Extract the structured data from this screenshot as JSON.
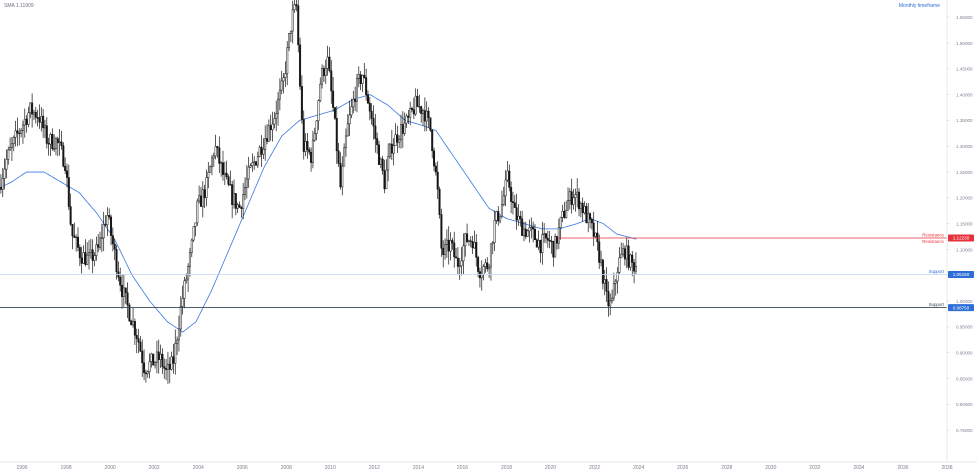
{
  "chart_data": {
    "type": "candlestick",
    "title": "SMA 1.11909",
    "timeframe_label": "Monthly timeframe",
    "x_range": [
      1995.0,
      2038.0
    ],
    "ylim": [
      0.7,
      1.56
    ],
    "y_ticks": [
      0.75,
      0.8,
      0.85,
      0.9,
      0.95,
      1.0,
      1.05,
      1.1,
      1.15,
      1.2,
      1.25,
      1.3,
      1.35,
      1.4,
      1.45,
      1.5,
      1.55
    ],
    "y_tick_labels": [
      "0.75000",
      "0.80000",
      "0.85000",
      "0.90000",
      "0.95000",
      "1.00000",
      "1.05000",
      "1.10000",
      "1.15000",
      "1.20000",
      "1.25000",
      "1.30000",
      "1.35000",
      "1.40000",
      "1.45000",
      "1.50000",
      "1.55000"
    ],
    "x_ticks": [
      1996,
      1998,
      2000,
      2002,
      2004,
      2006,
      2008,
      2010,
      2012,
      2014,
      2016,
      2018,
      2020,
      2022,
      2024,
      2026,
      2028,
      2030,
      2032,
      2034,
      2036,
      2038
    ],
    "x_tick_labels": [
      "1996",
      "1998",
      "2000",
      "2002",
      "2004",
      "2006",
      "2008",
      "2010",
      "2012",
      "2014",
      "2016",
      "2018",
      "2020",
      "2022",
      "2024",
      "2026",
      "2028",
      "2030",
      "2032",
      "2034",
      "2036",
      "2038"
    ],
    "levels": [
      {
        "name": "Resistance",
        "value": 1.1223,
        "label": "1.12230",
        "color": "#e5333b",
        "line_from_year": 2020.3,
        "badge_color": "#e5333b"
      },
      {
        "name": "Support",
        "value": 1.0516,
        "label": "1.05160",
        "color": "#2d6ed6",
        "line_from_year": 1995.0,
        "badge_color": "#2d6ed6"
      },
      {
        "name": "Support",
        "value": 0.9875,
        "label": "0.98750",
        "color": "#3a4656",
        "line_from_year": 1995.0,
        "badge_color": "#2d6ed6"
      }
    ],
    "price_series_anchors": [
      [
        1995.0,
        1.22
      ],
      [
        1995.3,
        1.27
      ],
      [
        1995.8,
        1.32
      ],
      [
        1996.4,
        1.37
      ],
      [
        1996.8,
        1.36
      ],
      [
        1997.2,
        1.31
      ],
      [
        1997.6,
        1.31
      ],
      [
        1998.0,
        1.27
      ],
      [
        1998.3,
        1.13
      ],
      [
        1998.7,
        1.09
      ],
      [
        1999.1,
        1.08
      ],
      [
        1999.5,
        1.1
      ],
      [
        1999.9,
        1.17
      ],
      [
        2000.3,
        1.08
      ],
      [
        2000.6,
        1.02
      ],
      [
        2000.9,
        0.98
      ],
      [
        2001.3,
        0.93
      ],
      [
        2001.6,
        0.87
      ],
      [
        2001.9,
        0.88
      ],
      [
        2002.3,
        0.89
      ],
      [
        2002.6,
        0.86
      ],
      [
        2002.9,
        0.88
      ],
      [
        2003.3,
        1.0
      ],
      [
        2003.7,
        1.09
      ],
      [
        2004.0,
        1.18
      ],
      [
        2004.4,
        1.22
      ],
      [
        2004.8,
        1.3
      ],
      [
        2005.2,
        1.24
      ],
      [
        2005.6,
        1.2
      ],
      [
        2005.9,
        1.18
      ],
      [
        2006.3,
        1.24
      ],
      [
        2006.7,
        1.28
      ],
      [
        2007.1,
        1.32
      ],
      [
        2007.5,
        1.36
      ],
      [
        2007.9,
        1.42
      ],
      [
        2008.3,
        1.55
      ],
      [
        2008.5,
        1.57
      ],
      [
        2008.8,
        1.3
      ],
      [
        2009.2,
        1.28
      ],
      [
        2009.6,
        1.43
      ],
      [
        2009.9,
        1.47
      ],
      [
        2010.2,
        1.36
      ],
      [
        2010.5,
        1.22
      ],
      [
        2010.8,
        1.33
      ],
      [
        2011.2,
        1.41
      ],
      [
        2011.5,
        1.44
      ],
      [
        2011.8,
        1.38
      ],
      [
        2012.2,
        1.29
      ],
      [
        2012.5,
        1.23
      ],
      [
        2012.8,
        1.3
      ],
      [
        2013.2,
        1.33
      ],
      [
        2013.6,
        1.35
      ],
      [
        2013.9,
        1.38
      ],
      [
        2014.3,
        1.37
      ],
      [
        2014.6,
        1.33
      ],
      [
        2014.9,
        1.22
      ],
      [
        2015.1,
        1.09
      ],
      [
        2015.5,
        1.11
      ],
      [
        2015.8,
        1.07
      ],
      [
        2016.2,
        1.12
      ],
      [
        2016.5,
        1.12
      ],
      [
        2016.8,
        1.06
      ],
      [
        2017.2,
        1.07
      ],
      [
        2017.5,
        1.15
      ],
      [
        2017.8,
        1.18
      ],
      [
        2018.1,
        1.24
      ],
      [
        2018.4,
        1.17
      ],
      [
        2018.8,
        1.14
      ],
      [
        2019.2,
        1.13
      ],
      [
        2019.6,
        1.11
      ],
      [
        2019.9,
        1.12
      ],
      [
        2020.2,
        1.1
      ],
      [
        2020.5,
        1.15
      ],
      [
        2020.8,
        1.19
      ],
      [
        2021.1,
        1.21
      ],
      [
        2021.4,
        1.19
      ],
      [
        2021.7,
        1.16
      ],
      [
        2022.0,
        1.13
      ],
      [
        2022.3,
        1.08
      ],
      [
        2022.6,
        1.0
      ],
      [
        2022.8,
        0.99
      ],
      [
        2023.1,
        1.07
      ],
      [
        2023.4,
        1.1
      ],
      [
        2023.7,
        1.07
      ],
      [
        2023.9,
        1.07
      ]
    ],
    "sma_anchors": [
      [
        1995.0,
        1.22
      ],
      [
        1995.5,
        1.23
      ],
      [
        1996.2,
        1.25
      ],
      [
        1997.0,
        1.25
      ],
      [
        1997.8,
        1.23
      ],
      [
        1998.6,
        1.21
      ],
      [
        1999.4,
        1.17
      ],
      [
        2000.2,
        1.12
      ],
      [
        2001.0,
        1.05
      ],
      [
        2001.8,
        1.0
      ],
      [
        2002.6,
        0.96
      ],
      [
        2003.3,
        0.94
      ],
      [
        2003.9,
        0.96
      ],
      [
        2004.6,
        1.02
      ],
      [
        2005.4,
        1.1
      ],
      [
        2006.2,
        1.18
      ],
      [
        2007.0,
        1.26
      ],
      [
        2007.8,
        1.32
      ],
      [
        2008.6,
        1.35
      ],
      [
        2009.4,
        1.36
      ],
      [
        2010.2,
        1.37
      ],
      [
        2011.0,
        1.39
      ],
      [
        2011.8,
        1.4
      ],
      [
        2012.6,
        1.38
      ],
      [
        2013.4,
        1.35
      ],
      [
        2014.2,
        1.34
      ],
      [
        2014.8,
        1.33
      ],
      [
        2015.6,
        1.28
      ],
      [
        2016.4,
        1.23
      ],
      [
        2017.2,
        1.18
      ],
      [
        2018.0,
        1.16
      ],
      [
        2018.8,
        1.15
      ],
      [
        2019.6,
        1.14
      ],
      [
        2020.4,
        1.14
      ],
      [
        2021.2,
        1.15
      ],
      [
        2021.8,
        1.16
      ],
      [
        2022.4,
        1.15
      ],
      [
        2023.0,
        1.13
      ],
      [
        2023.9,
        1.12
      ]
    ]
  },
  "colors": {
    "candle": "#151515",
    "sma": "#3a78e0",
    "axis_text": "#7b8190",
    "axis_line": "#d9dce2",
    "bg": "#ffffff",
    "header_text": "#2d6ed6",
    "title_text": "#6a707c"
  }
}
